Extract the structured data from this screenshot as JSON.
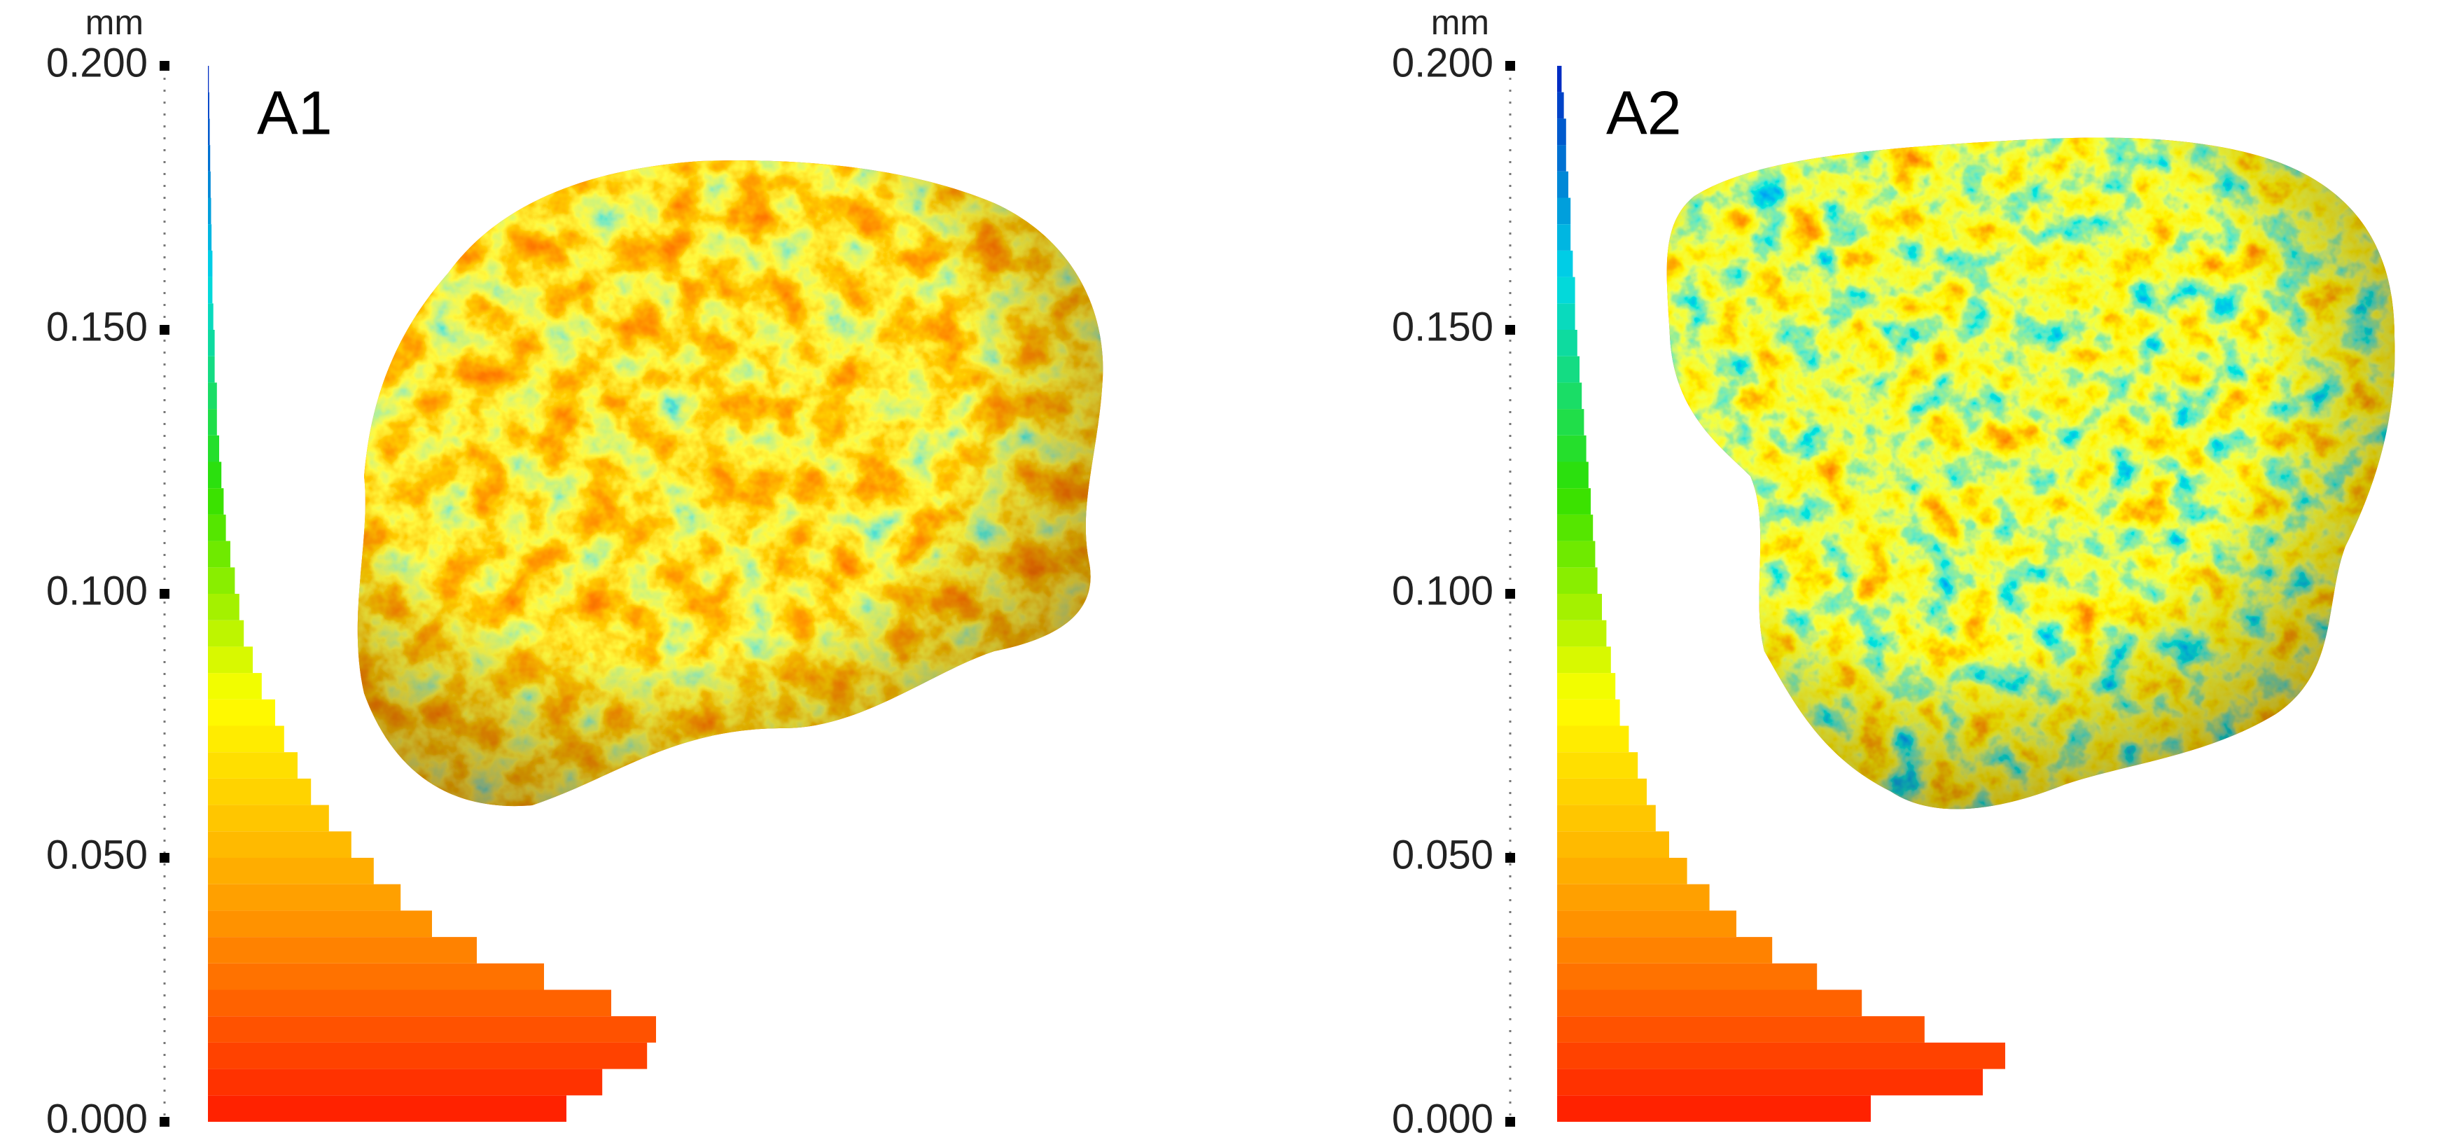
{
  "chart_data": [
    {
      "type": "histogram",
      "title": "A1",
      "y_label": "mm",
      "orientation": "horizontal",
      "bins": [
        0,
        0.005,
        0.01,
        0.015,
        0.02,
        0.025,
        0.03,
        0.035,
        0.04,
        0.045,
        0.05,
        0.055,
        0.06,
        0.065,
        0.07,
        0.075,
        0.08,
        0.085,
        0.09,
        0.095,
        0.1,
        0.105,
        0.11,
        0.115,
        0.12,
        0.125,
        0.13,
        0.135,
        0.14,
        0.145,
        0.15,
        0.155,
        0.16,
        0.165,
        0.17,
        0.175,
        0.18,
        0.185,
        0.19,
        0.195,
        0.2
      ],
      "values": [
        80,
        88,
        98,
        100,
        90,
        75,
        60,
        50,
        43,
        37,
        32,
        27,
        23,
        20,
        17,
        15,
        12,
        10,
        8,
        7,
        6,
        5,
        4,
        3.5,
        3,
        2.5,
        2,
        2,
        1.5,
        1.5,
        1.2,
        1,
        1,
        0.8,
        0.7,
        0.6,
        0.5,
        0.4,
        0.3,
        0.2
      ],
      "ylim": [
        0,
        0.2
      ],
      "yticks": [
        {
          "value": 0,
          "label": "0.000"
        },
        {
          "value": 0.05,
          "label": "0.050"
        },
        {
          "value": 0.1,
          "label": "0.100"
        },
        {
          "value": 0.15,
          "label": "0.150"
        },
        {
          "value": 0.2,
          "label": "0.200"
        }
      ],
      "colormap": [
        "#ff1a00",
        "#ff9a00",
        "#ffff00",
        "#2ee000",
        "#00d8e8",
        "#0020c0"
      ]
    },
    {
      "type": "histogram",
      "title": "A2",
      "y_label": "mm",
      "orientation": "horizontal",
      "bins": [
        0,
        0.005,
        0.01,
        0.015,
        0.02,
        0.025,
        0.03,
        0.035,
        0.04,
        0.045,
        0.05,
        0.055,
        0.06,
        0.065,
        0.07,
        0.075,
        0.08,
        0.085,
        0.09,
        0.095,
        0.1,
        0.105,
        0.11,
        0.115,
        0.12,
        0.125,
        0.13,
        0.135,
        0.14,
        0.145,
        0.15,
        0.155,
        0.16,
        0.165,
        0.17,
        0.175,
        0.18,
        0.185,
        0.19,
        0.195,
        0.2
      ],
      "values": [
        70,
        95,
        100,
        82,
        68,
        58,
        48,
        40,
        34,
        29,
        25,
        22,
        20,
        18,
        16,
        14,
        13,
        12,
        11,
        10,
        9,
        8.5,
        8,
        7.5,
        7,
        6.5,
        6,
        5.5,
        5,
        4.5,
        4,
        4,
        3.5,
        3,
        3,
        2.5,
        2,
        2,
        1.5,
        1
      ],
      "ylim": [
        0,
        0.2
      ],
      "yticks": [
        {
          "value": 0,
          "label": "0.000"
        },
        {
          "value": 0.05,
          "label": "0.050"
        },
        {
          "value": 0.1,
          "label": "0.100"
        },
        {
          "value": 0.15,
          "label": "0.150"
        },
        {
          "value": 0.2,
          "label": "0.200"
        }
      ],
      "colormap": [
        "#ff1a00",
        "#ff9a00",
        "#ffff00",
        "#2ee000",
        "#00d8e8",
        "#0020c0"
      ]
    }
  ]
}
